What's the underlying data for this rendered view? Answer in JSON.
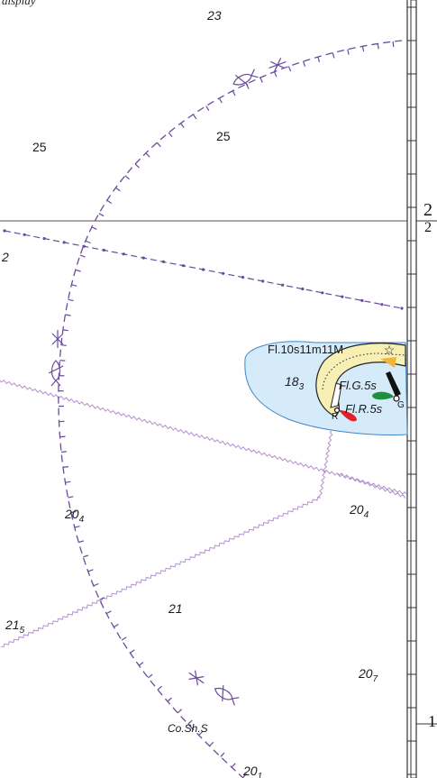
{
  "chart": {
    "top_note": "display",
    "grid_labels": {
      "right_upper": "2",
      "right_upper_b": "2",
      "right_lower": "1",
      "left_edge": "2"
    },
    "soundings": [
      {
        "id": "s23",
        "main": "23",
        "sub": ""
      },
      {
        "id": "s25a",
        "main": "25",
        "sub": ""
      },
      {
        "id": "s25b",
        "main": "25",
        "sub": ""
      },
      {
        "id": "s18",
        "main": "18",
        "sub": "3"
      },
      {
        "id": "s20a",
        "main": "20",
        "sub": "4"
      },
      {
        "id": "s20b",
        "main": "20",
        "sub": "4"
      },
      {
        "id": "s21",
        "main": "21",
        "sub": ""
      },
      {
        "id": "s21b",
        "main": "21",
        "sub": "5"
      },
      {
        "id": "s20c",
        "main": "20",
        "sub": "7"
      },
      {
        "id": "s20d",
        "main": "20",
        "sub": "1"
      }
    ],
    "lights": {
      "main": "Fl.10s11m11M",
      "green": "Fl.G.5s",
      "red": "Fl.R.5s",
      "green_letter": "G",
      "red_letter": "R"
    },
    "seabed": "Co.Sh.S",
    "colors": {
      "limit_line": "#6a4a9c",
      "cable_line": "#b48fd0",
      "shallow_water": "#d6ebfa",
      "land": "#f8efb4",
      "light_green": "#1e8f3c",
      "light_red": "#e0202a",
      "light_yellow": "#f2b43a"
    }
  }
}
